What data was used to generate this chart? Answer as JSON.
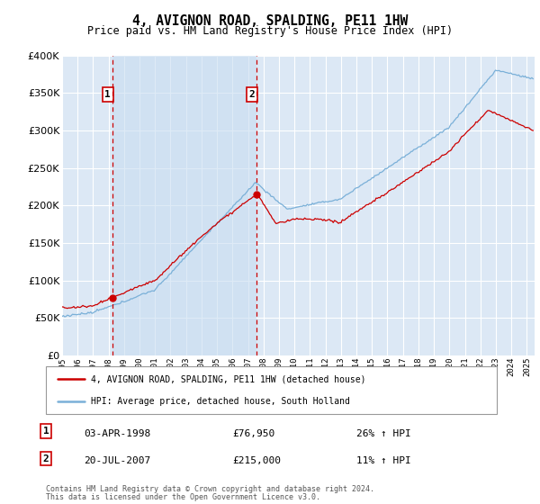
{
  "title": "4, AVIGNON ROAD, SPALDING, PE11 1HW",
  "subtitle": "Price paid vs. HM Land Registry's House Price Index (HPI)",
  "ylim": [
    0,
    400000
  ],
  "xlim_start": 1995.0,
  "xlim_end": 2025.5,
  "background_color": "#dce8f5",
  "grid_color": "#ffffff",
  "sale1_date": 1998.25,
  "sale1_price": 76950,
  "sale1_label": "1",
  "sale1_date_str": "03-APR-1998",
  "sale1_price_str": "£76,950",
  "sale1_hpi_str": "26% ↑ HPI",
  "sale2_date": 2007.54,
  "sale2_price": 215000,
  "sale2_label": "2",
  "sale2_date_str": "20-JUL-2007",
  "sale2_price_str": "£215,000",
  "sale2_hpi_str": "11% ↑ HPI",
  "legend_line1": "4, AVIGNON ROAD, SPALDING, PE11 1HW (detached house)",
  "legend_line2": "HPI: Average price, detached house, South Holland",
  "footer1": "Contains HM Land Registry data © Crown copyright and database right 2024.",
  "footer2": "This data is licensed under the Open Government Licence v3.0.",
  "line_color_red": "#cc0000",
  "line_color_blue": "#7ab0d8",
  "vline_color": "#cc0000",
  "shade_color": "#c8ddf0",
  "xtick_years": [
    1995,
    1996,
    1997,
    1998,
    1999,
    2000,
    2001,
    2002,
    2003,
    2004,
    2005,
    2006,
    2007,
    2008,
    2009,
    2010,
    2011,
    2012,
    2013,
    2014,
    2015,
    2016,
    2017,
    2018,
    2019,
    2020,
    2021,
    2022,
    2023,
    2024,
    2025
  ]
}
